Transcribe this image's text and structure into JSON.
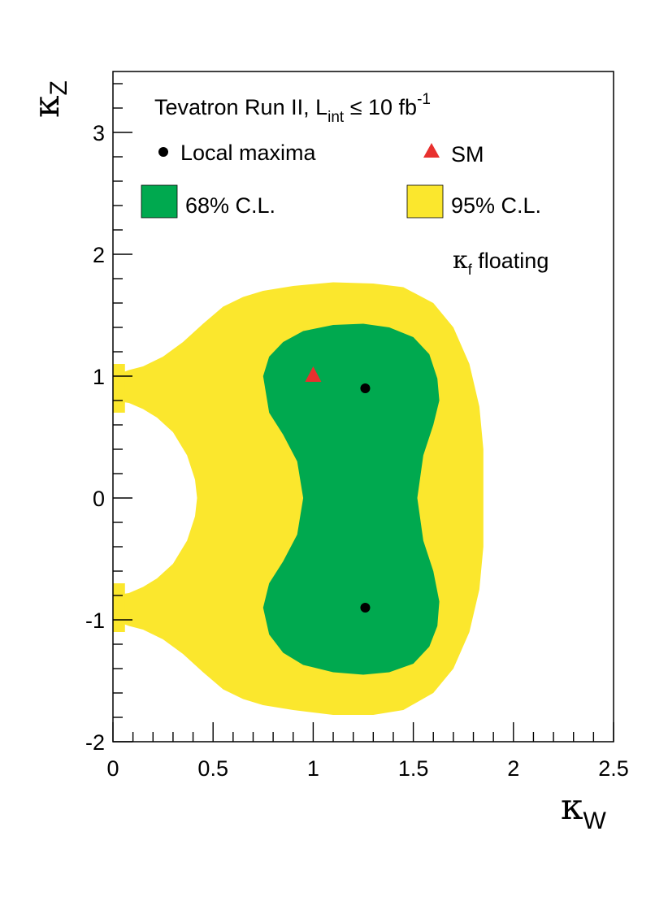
{
  "chart_data": {
    "type": "contour",
    "title": "Tevatron Run II, L_int ≤ 10 fb^-1",
    "title_parts": {
      "main": "Tevatron Run II, L",
      "sub": "int",
      "rest": " ≤ 10 fb",
      "sup": "-1"
    },
    "xlabel": {
      "symbol": "κ",
      "sub": "W"
    },
    "ylabel": {
      "symbol": "κ",
      "sub": "Z"
    },
    "annotation": {
      "symbol": "κ",
      "sub": "f",
      "text": " floating"
    },
    "xlim": [
      0,
      2.5
    ],
    "ylim": [
      -2,
      3.5
    ],
    "x_major_ticks": [
      0,
      0.5,
      1,
      1.5,
      2,
      2.5
    ],
    "x_tick_labels": [
      "0",
      "0.5",
      "1",
      "1.5",
      "2",
      "2.5"
    ],
    "y_major_ticks": [
      -2,
      -1,
      0,
      1,
      2,
      3
    ],
    "y_tick_labels": [
      "-2",
      "-1",
      "0",
      "1",
      "2",
      "3"
    ],
    "x_minor_step": 0.1,
    "y_minor_step": 0.2,
    "legend": [
      {
        "key": "maxima",
        "label": "Local maxima",
        "marker": "circle",
        "color": "#000000"
      },
      {
        "key": "sm",
        "label": "SM",
        "marker": "triangle",
        "color": "#e8302e"
      },
      {
        "key": "cl68",
        "label": "68% C.L.",
        "marker": "box",
        "color": "#00a94f"
      },
      {
        "key": "cl95",
        "label": "95% C.L.",
        "marker": "box",
        "color": "#fbe72d"
      }
    ],
    "regions": {
      "cl95": [
        [
          0.0,
          1.0
        ],
        [
          0.08,
          1.05
        ],
        [
          0.15,
          1.08
        ],
        [
          0.25,
          1.16
        ],
        [
          0.35,
          1.28
        ],
        [
          0.45,
          1.43
        ],
        [
          0.55,
          1.57
        ],
        [
          0.65,
          1.65
        ],
        [
          0.75,
          1.7
        ],
        [
          0.9,
          1.74
        ],
        [
          1.1,
          1.77
        ],
        [
          1.3,
          1.76
        ],
        [
          1.45,
          1.73
        ],
        [
          1.6,
          1.6
        ],
        [
          1.7,
          1.4
        ],
        [
          1.78,
          1.1
        ],
        [
          1.83,
          0.75
        ],
        [
          1.85,
          0.4
        ],
        [
          1.85,
          0.0
        ],
        [
          1.85,
          -0.4
        ],
        [
          1.83,
          -0.75
        ],
        [
          1.78,
          -1.1
        ],
        [
          1.7,
          -1.4
        ],
        [
          1.6,
          -1.6
        ],
        [
          1.45,
          -1.74
        ],
        [
          1.3,
          -1.78
        ],
        [
          1.1,
          -1.78
        ],
        [
          0.9,
          -1.74
        ],
        [
          0.75,
          -1.7
        ],
        [
          0.65,
          -1.65
        ],
        [
          0.55,
          -1.57
        ],
        [
          0.45,
          -1.43
        ],
        [
          0.35,
          -1.28
        ],
        [
          0.25,
          -1.16
        ],
        [
          0.15,
          -1.08
        ],
        [
          0.08,
          -1.05
        ],
        [
          0.0,
          -1.0
        ],
        [
          0.0,
          -0.8
        ],
        [
          0.08,
          -0.78
        ],
        [
          0.15,
          -0.73
        ],
        [
          0.22,
          -0.66
        ],
        [
          0.3,
          -0.54
        ],
        [
          0.37,
          -0.35
        ],
        [
          0.41,
          -0.15
        ],
        [
          0.42,
          0.0
        ],
        [
          0.41,
          0.15
        ],
        [
          0.37,
          0.35
        ],
        [
          0.3,
          0.54
        ],
        [
          0.22,
          0.66
        ],
        [
          0.15,
          0.73
        ],
        [
          0.08,
          0.78
        ],
        [
          0.0,
          0.8
        ]
      ],
      "cl68": [
        [
          0.75,
          1.0
        ],
        [
          0.78,
          1.16
        ],
        [
          0.85,
          1.28
        ],
        [
          0.95,
          1.37
        ],
        [
          1.1,
          1.42
        ],
        [
          1.25,
          1.43
        ],
        [
          1.38,
          1.4
        ],
        [
          1.5,
          1.32
        ],
        [
          1.58,
          1.18
        ],
        [
          1.62,
          0.98
        ],
        [
          1.63,
          0.8
        ],
        [
          1.6,
          0.6
        ],
        [
          1.55,
          0.35
        ],
        [
          1.52,
          0.0
        ],
        [
          1.55,
          -0.35
        ],
        [
          1.6,
          -0.6
        ],
        [
          1.63,
          -0.85
        ],
        [
          1.62,
          -1.05
        ],
        [
          1.58,
          -1.22
        ],
        [
          1.5,
          -1.36
        ],
        [
          1.38,
          -1.43
        ],
        [
          1.25,
          -1.45
        ],
        [
          1.1,
          -1.43
        ],
        [
          0.95,
          -1.37
        ],
        [
          0.85,
          -1.27
        ],
        [
          0.78,
          -1.12
        ],
        [
          0.75,
          -0.9
        ],
        [
          0.78,
          -0.7
        ],
        [
          0.85,
          -0.52
        ],
        [
          0.92,
          -0.3
        ],
        [
          0.95,
          0.0
        ],
        [
          0.92,
          0.3
        ],
        [
          0.85,
          0.52
        ],
        [
          0.78,
          0.7
        ]
      ]
    },
    "points": {
      "maxima": [
        [
          1.26,
          0.9
        ],
        [
          1.26,
          -0.9
        ]
      ],
      "sm": [
        [
          1.0,
          1.0
        ]
      ]
    }
  }
}
